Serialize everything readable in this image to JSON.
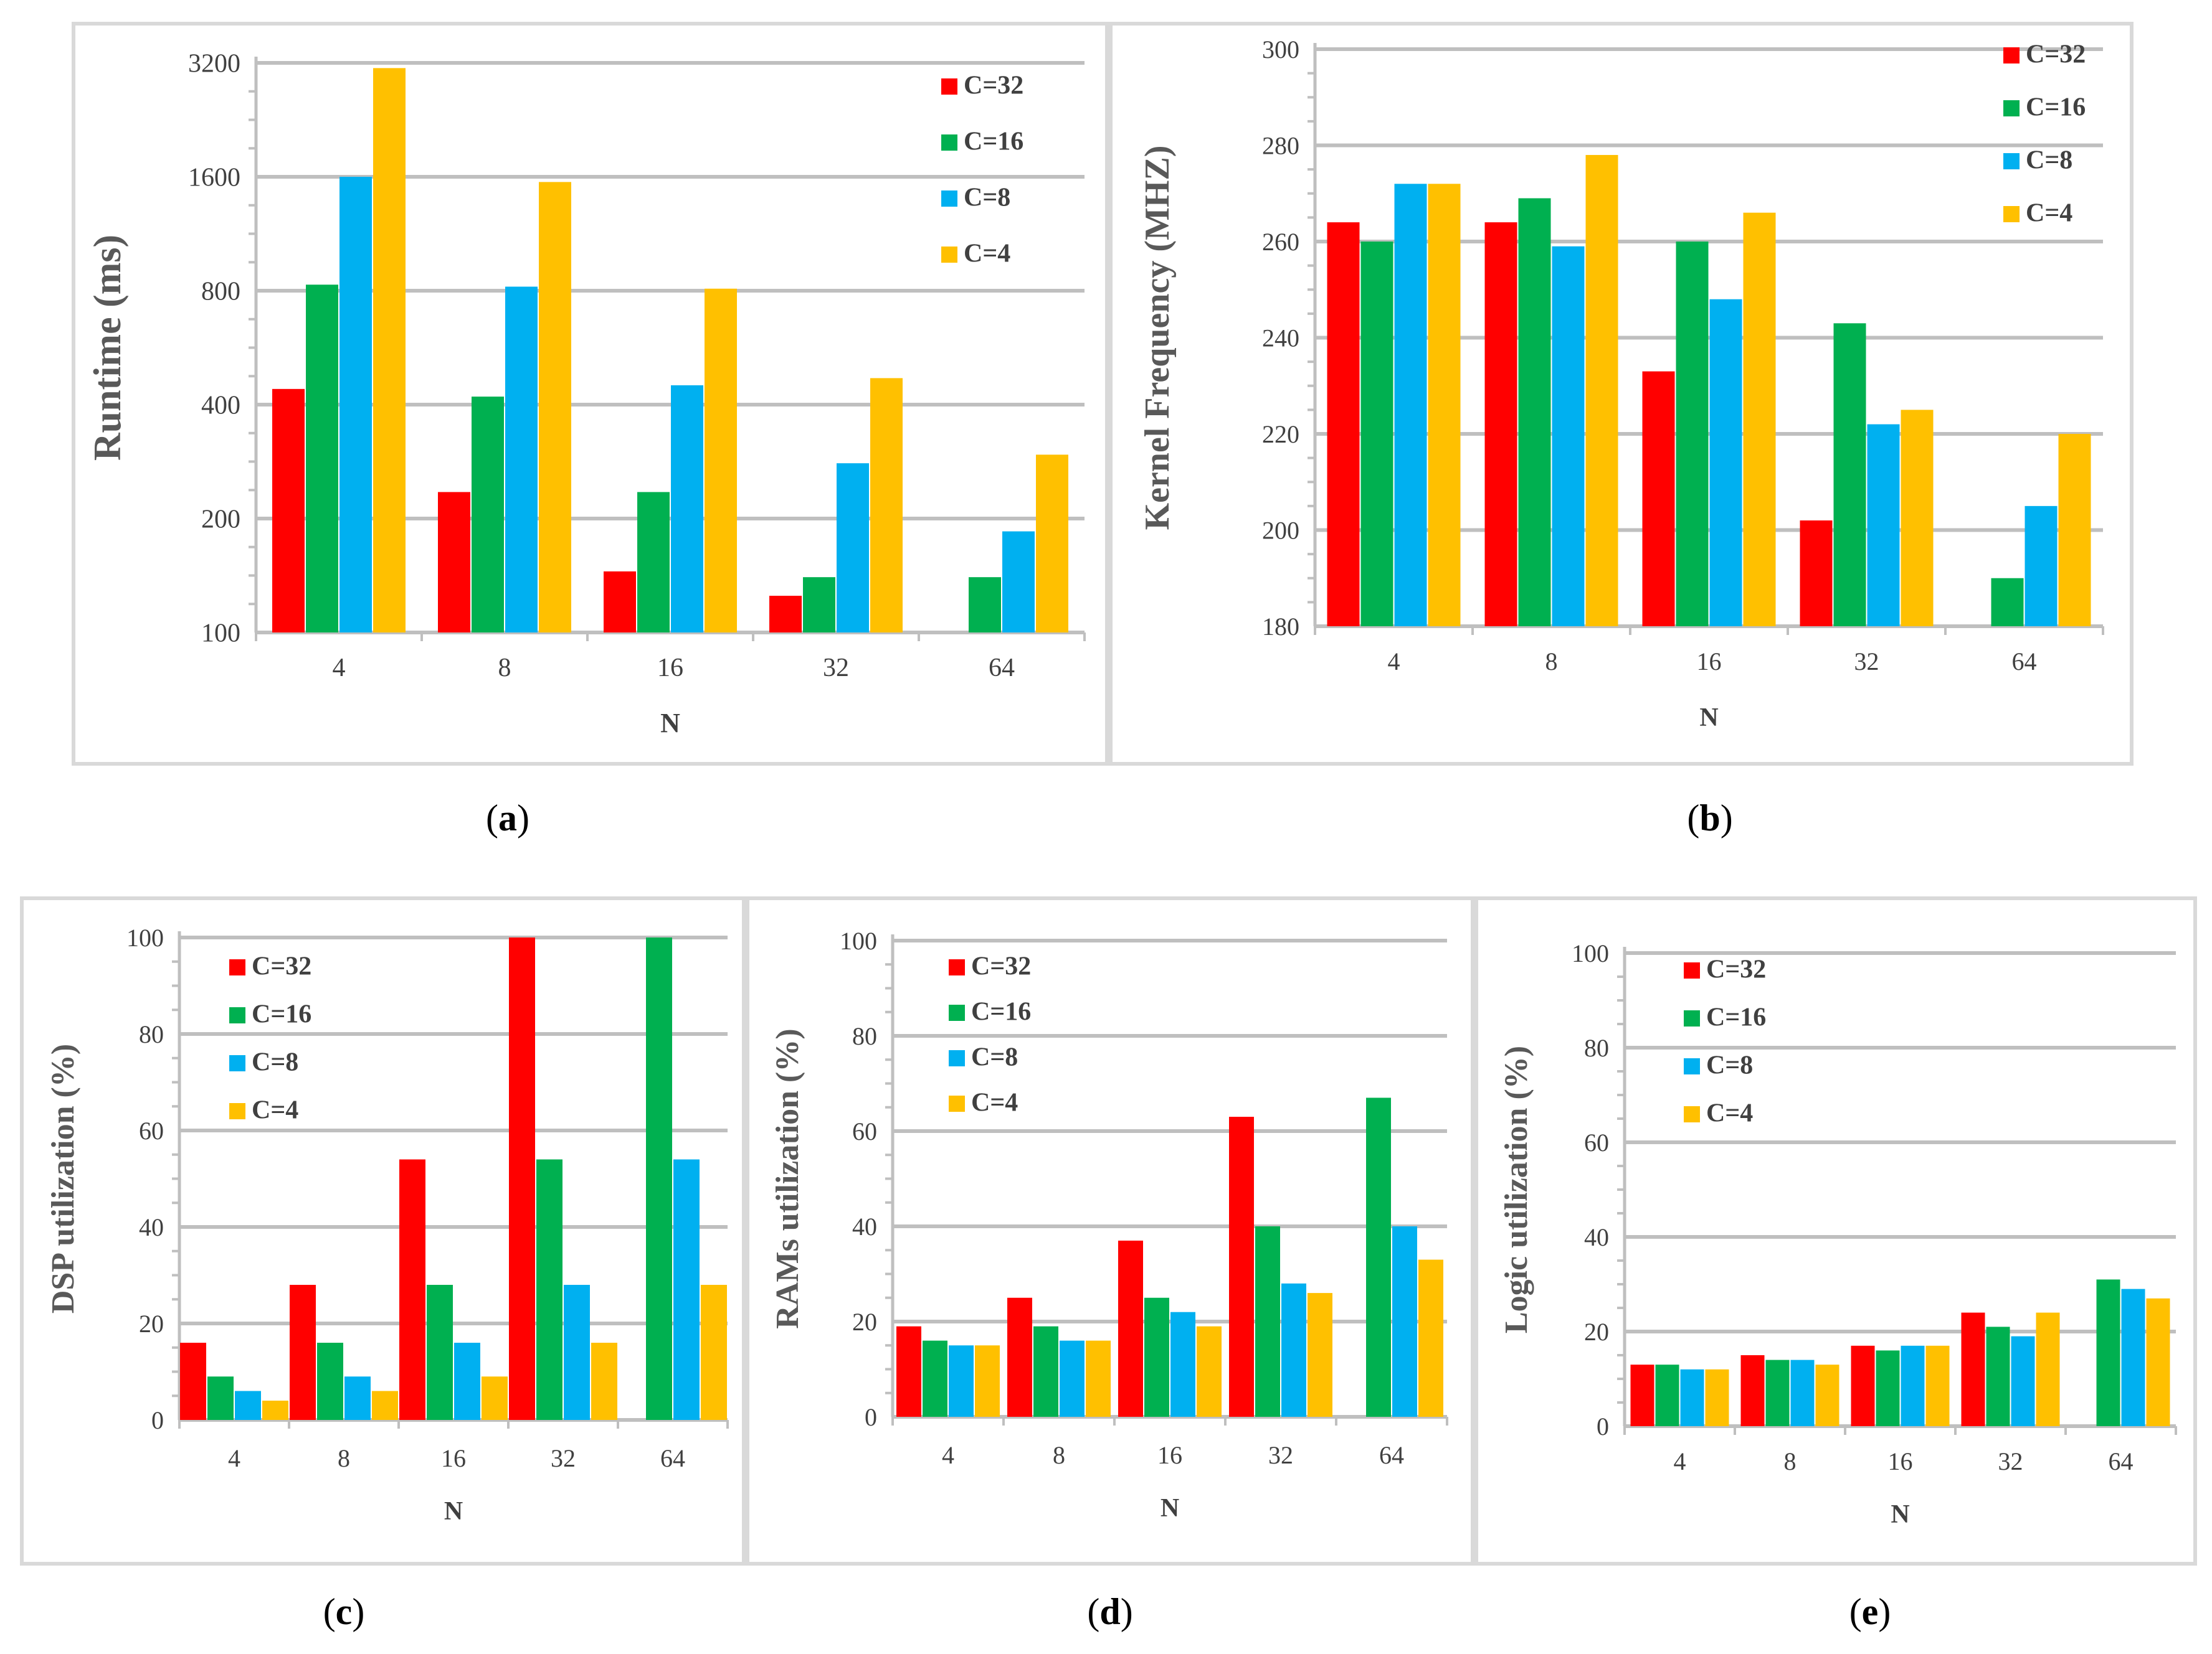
{
  "captions": [
    "a",
    "b",
    "c",
    "d",
    "e"
  ],
  "chart_data": [
    {
      "type": "bar",
      "ylabel": "Runtime (ms)",
      "xlabel": "N",
      "categories": [
        "4",
        "8",
        "16",
        "32",
        "64"
      ],
      "yscale": "log2",
      "ylim": [
        100,
        3200
      ],
      "yticks": [
        100,
        200,
        400,
        800,
        1600,
        3200
      ],
      "grid": true,
      "legend_position": "top-right",
      "series": [
        {
          "name": "C=32",
          "color": "#ff0000",
          "values": [
            440,
            235,
            145,
            125,
            null
          ]
        },
        {
          "name": "C=16",
          "color": "#00b050",
          "values": [
            830,
            420,
            235,
            140,
            140
          ]
        },
        {
          "name": "C=8",
          "color": "#00b0f0",
          "values": [
            1600,
            820,
            450,
            280,
            185
          ]
        },
        {
          "name": "C=4",
          "color": "#ffc000",
          "values": [
            3100,
            1550,
            810,
            470,
            295
          ]
        }
      ]
    },
    {
      "type": "bar",
      "ylabel": "Kernel Frequency (MHZ)",
      "xlabel": "N",
      "categories": [
        "4",
        "8",
        "16",
        "32",
        "64"
      ],
      "yscale": "linear",
      "ylim": [
        180,
        300
      ],
      "yticks": [
        180,
        200,
        220,
        240,
        260,
        280,
        300
      ],
      "grid": true,
      "legend_position": "top-right",
      "series": [
        {
          "name": "C=32",
          "color": "#ff0000",
          "values": [
            264,
            264,
            233,
            202,
            null
          ]
        },
        {
          "name": "C=16",
          "color": "#00b050",
          "values": [
            260,
            269,
            260,
            243,
            190
          ]
        },
        {
          "name": "C=8",
          "color": "#00b0f0",
          "values": [
            272,
            259,
            248,
            222,
            205
          ]
        },
        {
          "name": "C=4",
          "color": "#ffc000",
          "values": [
            272,
            278,
            266,
            225,
            220
          ]
        }
      ]
    },
    {
      "type": "bar",
      "ylabel": "DSP utilization (%)",
      "xlabel": "N",
      "categories": [
        "4",
        "8",
        "16",
        "32",
        "64"
      ],
      "yscale": "linear",
      "ylim": [
        0,
        100
      ],
      "yticks": [
        0,
        20,
        40,
        60,
        80,
        100
      ],
      "grid": true,
      "legend_position": "top-left",
      "series": [
        {
          "name": "C=32",
          "color": "#ff0000",
          "values": [
            16,
            28,
            54,
            100,
            null
          ]
        },
        {
          "name": "C=16",
          "color": "#00b050",
          "values": [
            9,
            16,
            28,
            54,
            100
          ]
        },
        {
          "name": "C=8",
          "color": "#00b0f0",
          "values": [
            6,
            9,
            16,
            28,
            54
          ]
        },
        {
          "name": "C=4",
          "color": "#ffc000",
          "values": [
            4,
            6,
            9,
            16,
            28
          ]
        }
      ]
    },
    {
      "type": "bar",
      "ylabel": "RAMs utilization (%)",
      "xlabel": "N",
      "categories": [
        "4",
        "8",
        "16",
        "32",
        "64"
      ],
      "yscale": "linear",
      "ylim": [
        0,
        100
      ],
      "yticks": [
        0,
        20,
        40,
        60,
        80,
        100
      ],
      "grid": true,
      "legend_position": "top-left",
      "series": [
        {
          "name": "C=32",
          "color": "#ff0000",
          "values": [
            19,
            25,
            37,
            63,
            null
          ]
        },
        {
          "name": "C=16",
          "color": "#00b050",
          "values": [
            16,
            19,
            25,
            40,
            67
          ]
        },
        {
          "name": "C=8",
          "color": "#00b0f0",
          "values": [
            15,
            16,
            22,
            28,
            40
          ]
        },
        {
          "name": "C=4",
          "color": "#ffc000",
          "values": [
            15,
            16,
            19,
            26,
            33
          ]
        }
      ]
    },
    {
      "type": "bar",
      "ylabel": "Logic utilization (%)",
      "xlabel": "N",
      "categories": [
        "4",
        "8",
        "16",
        "32",
        "64"
      ],
      "yscale": "linear",
      "ylim": [
        0,
        100
      ],
      "yticks": [
        0,
        20,
        40,
        60,
        80,
        100
      ],
      "grid": true,
      "legend_position": "top-left",
      "series": [
        {
          "name": "C=32",
          "color": "#ff0000",
          "values": [
            13,
            15,
            17,
            24,
            null
          ]
        },
        {
          "name": "C=16",
          "color": "#00b050",
          "values": [
            13,
            14,
            16,
            21,
            31
          ]
        },
        {
          "name": "C=8",
          "color": "#00b0f0",
          "values": [
            12,
            14,
            17,
            19,
            29
          ]
        },
        {
          "name": "C=4",
          "color": "#ffc000",
          "values": [
            12,
            13,
            17,
            24,
            27
          ]
        }
      ]
    }
  ]
}
